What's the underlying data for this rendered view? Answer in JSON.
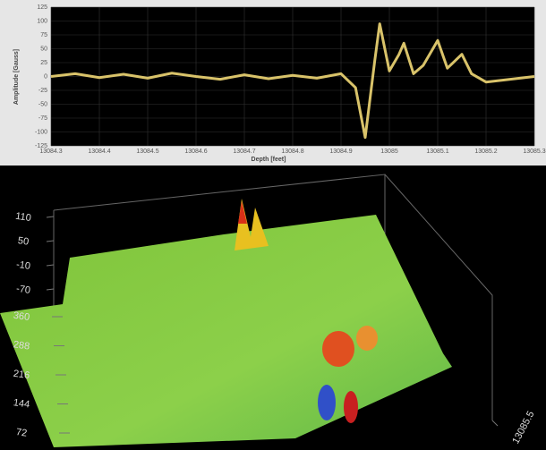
{
  "chart_data": [
    {
      "type": "line",
      "x_label": "Depth [feet]",
      "y_label": "Amplitude [Gauss]",
      "x": [
        13084.3,
        13084.35,
        13084.4,
        13084.45,
        13084.5,
        13084.55,
        13084.6,
        13084.65,
        13084.7,
        13084.75,
        13084.8,
        13084.85,
        13084.9,
        13084.93,
        13084.95,
        13084.97,
        13084.98,
        13085.0,
        13085.02,
        13085.03,
        13085.05,
        13085.07,
        13085.1,
        13085.12,
        13085.15,
        13085.17,
        13085.2,
        13085.25,
        13085.3
      ],
      "values": [
        0,
        5,
        -2,
        4,
        -3,
        6,
        0,
        -5,
        3,
        -4,
        2,
        -3,
        5,
        -20,
        -110,
        30,
        95,
        10,
        40,
        60,
        5,
        20,
        65,
        15,
        40,
        5,
        -10,
        -5,
        0
      ],
      "color": "#d9c36a",
      "xlim": [
        13084.3,
        13085.3
      ],
      "xticks": [
        13084.3,
        13084.4,
        13084.5,
        13084.6,
        13084.7,
        13084.8,
        13084.9,
        13085.0,
        13085.1,
        13085.2,
        13085.3
      ],
      "ylim": [
        -125,
        125
      ],
      "yticks": [
        125,
        100,
        75,
        50,
        25,
        0,
        -25,
        -50,
        -75,
        -100,
        -125
      ],
      "grid": true
    },
    {
      "type": "surface",
      "zticks": [
        110,
        50,
        -10,
        -70
      ],
      "yticks": [
        360,
        288,
        216,
        144,
        72
      ],
      "xticks": [
        13085.5
      ]
    }
  ]
}
